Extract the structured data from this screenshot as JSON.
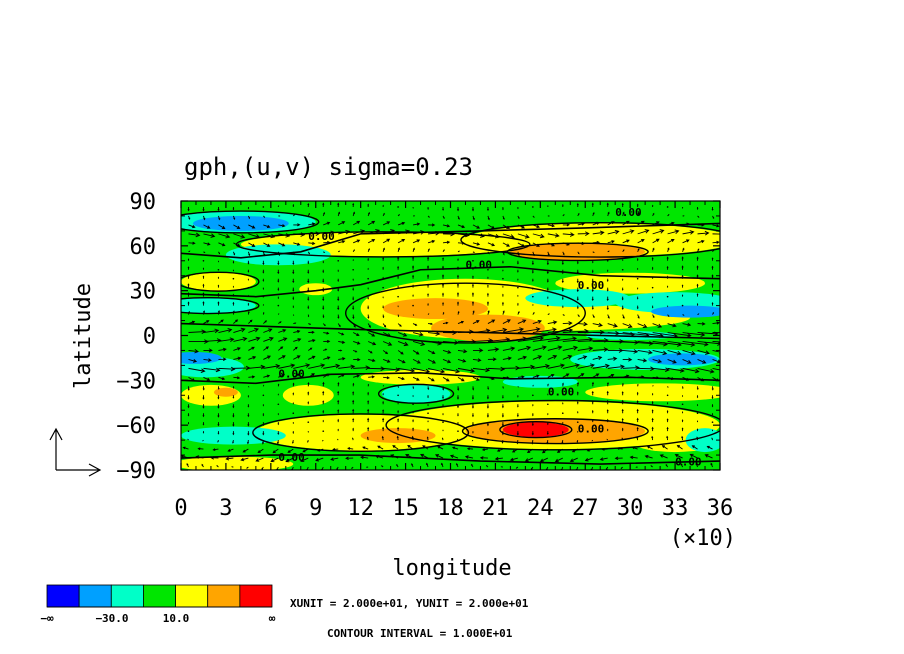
{
  "chart_data": {
    "type": "heatmap",
    "title": "gph,(u,v) sigma=0.23",
    "xlabel": "longitude",
    "ylabel": "latitude",
    "x_multiplier": "(×10)",
    "xlim": [
      0,
      36
    ],
    "ylim": [
      -90,
      90
    ],
    "x_ticks": [
      "0",
      "3",
      "6",
      "9",
      "12",
      "15",
      "18",
      "21",
      "24",
      "27",
      "30",
      "33",
      "36"
    ],
    "y_ticks": [
      "90",
      "60",
      "30",
      "0",
      "-30",
      "-60",
      "-90"
    ],
    "contour_labels": [
      "0.00",
      "0.00",
      "0.00",
      "0.00",
      "0.00",
      "0.00",
      "0.00",
      "0.00",
      "0.00"
    ],
    "colorbar": {
      "colors": [
        "#0000ff",
        "#00a0ff",
        "#00ffc8",
        "#00e600",
        "#ffff00",
        "#ffa500",
        "#ff0000"
      ],
      "labels": [
        "−∞",
        "−30.0",
        "10.0",
        "∞"
      ]
    },
    "notes": {
      "unit": "XUNIT = 2.000e+01, YUNIT = 2.000e+01",
      "interval": "CONTOUR INTERVAL = 1.000E+01"
    },
    "grid": false
  }
}
